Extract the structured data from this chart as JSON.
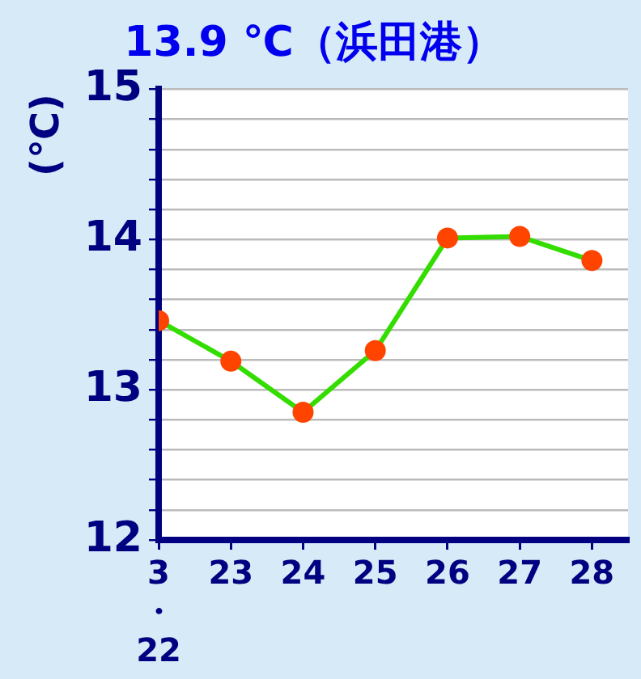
{
  "chart_data": {
    "type": "line",
    "title": "13.9 ℃（浜田港）",
    "ylabel": "(℃)",
    "x": [
      22,
      23,
      24,
      25,
      26,
      27,
      28
    ],
    "series": [
      {
        "color": "#33dd00",
        "colors": [
          "#ff4400",
          "#ff4400",
          "#ff4400",
          "#ff4400",
          "#ff4400",
          "#ff4400",
          "#ff4400"
        ],
        "values": [
          13.46,
          13.19,
          12.85,
          13.26,
          14.01,
          14.02,
          13.86
        ]
      }
    ],
    "marker": "circle",
    "line_style": "solid",
    "xlim": [
      22,
      28.5
    ],
    "xticks": [
      {
        "value": 22,
        "label": "3・22"
      },
      23,
      24,
      25,
      26,
      27,
      28
    ],
    "ylim": [
      12,
      15
    ],
    "yticks": [
      12,
      {
        "value": 12.2,
        "label": null
      },
      {
        "value": 12.4,
        "label": null
      },
      {
        "value": 12.6,
        "label": null
      },
      {
        "value": 12.8,
        "label": null
      },
      13,
      {
        "value": 13.2,
        "label": null
      },
      {
        "value": 13.4,
        "label": null
      },
      {
        "value": 13.6,
        "label": null
      },
      {
        "value": 13.8,
        "label": null
      },
      14,
      {
        "value": 14.2,
        "label": null
      },
      {
        "value": 14.4,
        "label": null
      },
      {
        "value": 14.6,
        "label": null
      },
      {
        "value": 14.8,
        "label": null
      },
      15
    ],
    "grid": "y",
    "legend": false
  }
}
